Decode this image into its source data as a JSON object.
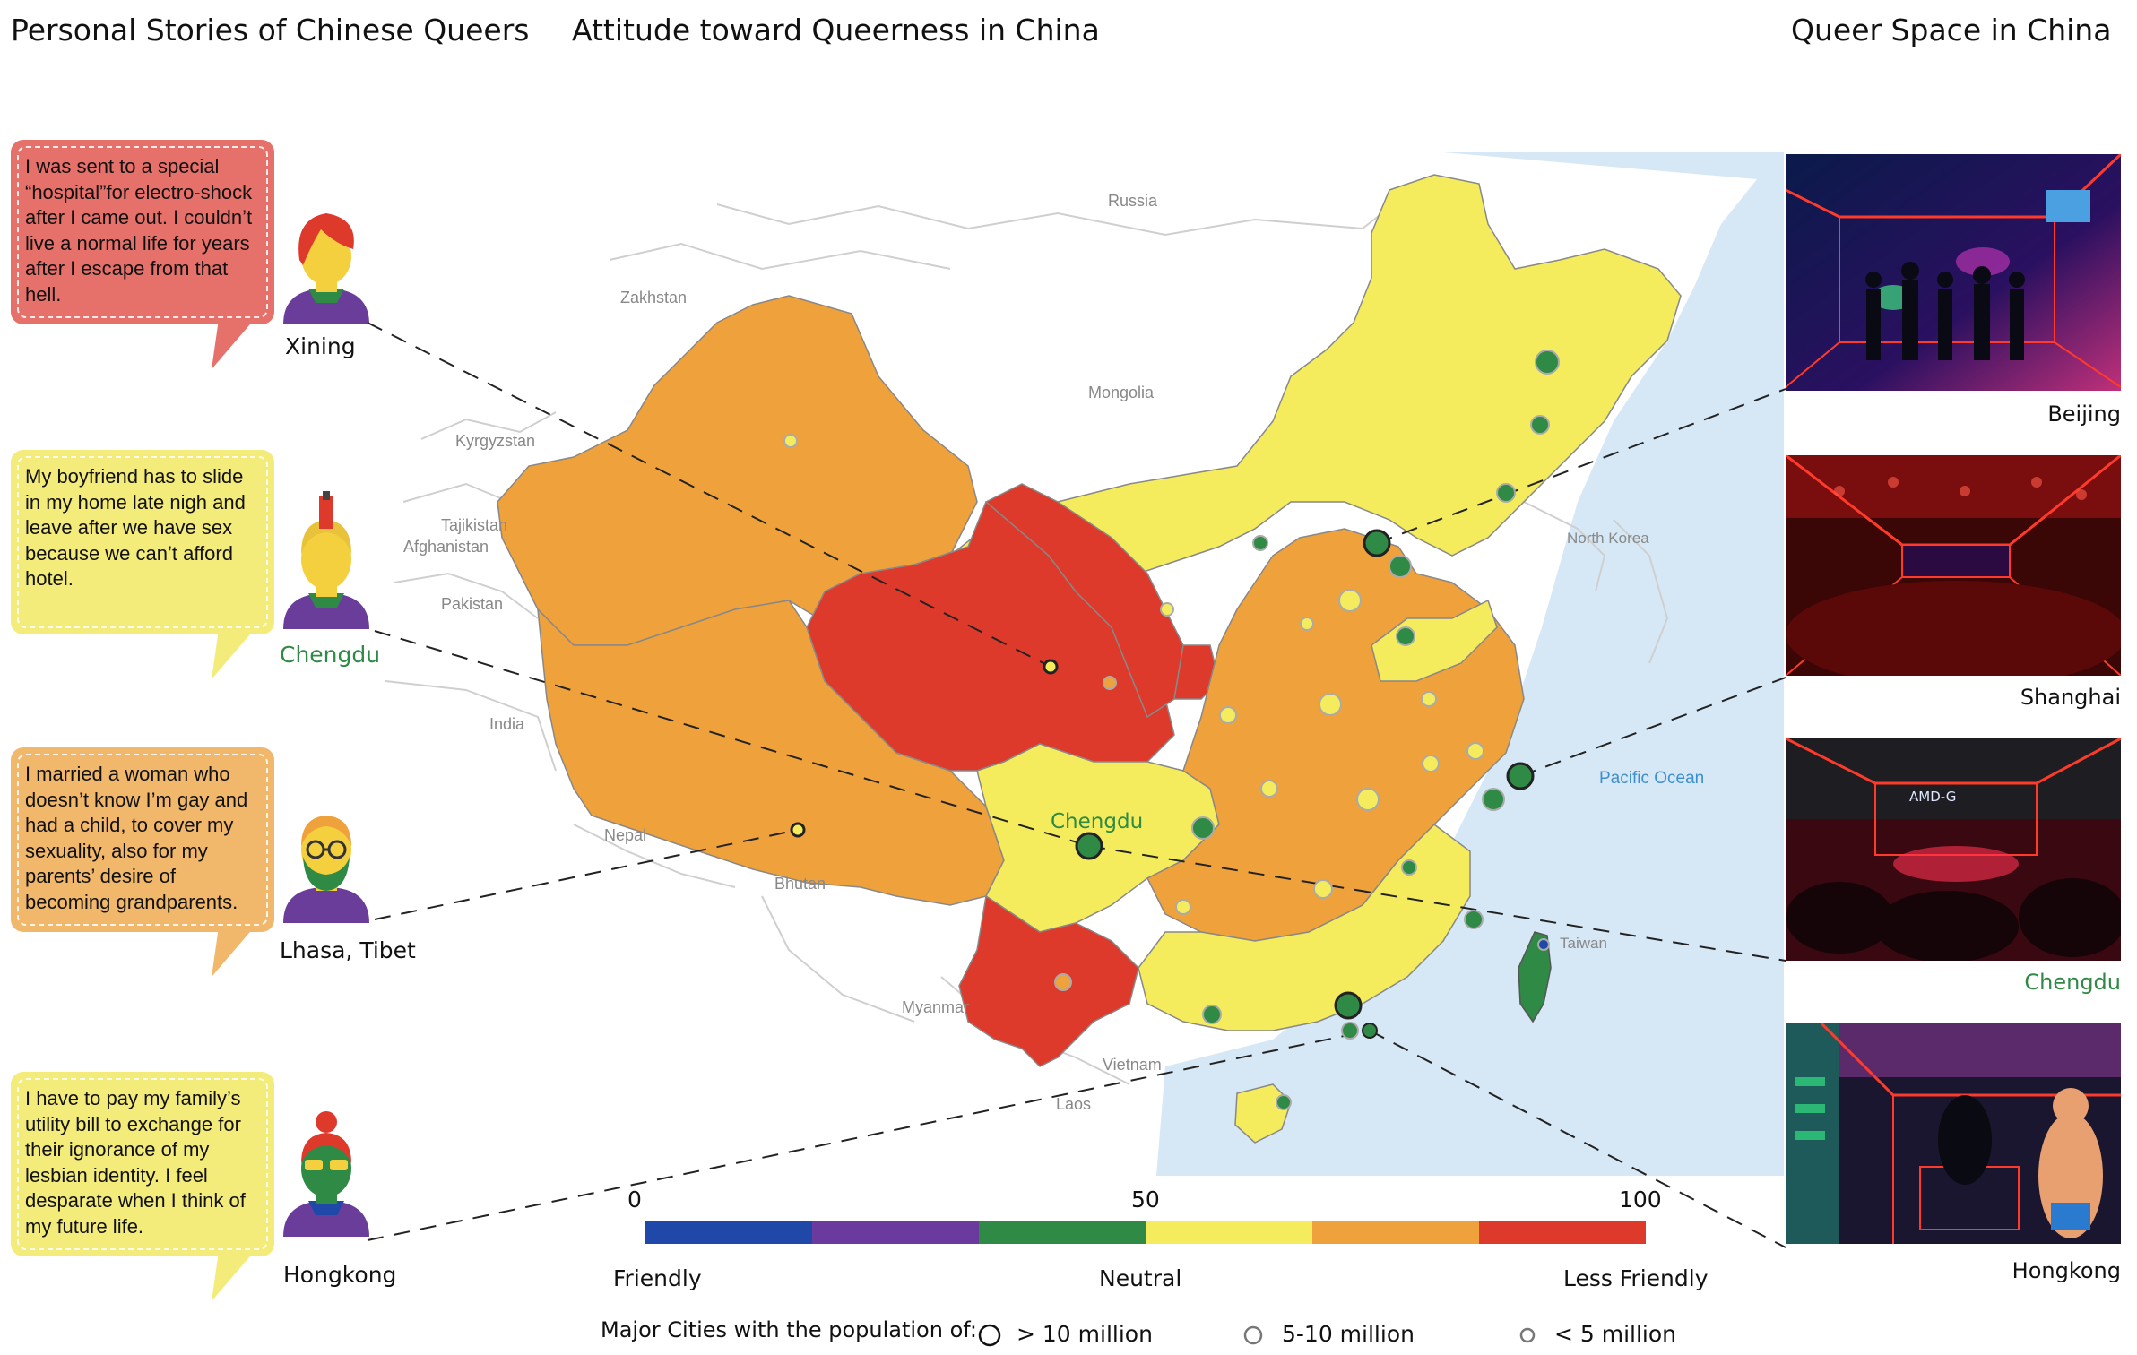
{
  "headings": {
    "stories": "Personal Stories of Chinese Queers",
    "attitude": "Attitude toward Queerness in China",
    "space": "Queer Space in China"
  },
  "stories": [
    {
      "text": "I was sent to a special “hospital”for electro-shock after I came out. I couldn’t  live a normal life for years after I escape from that hell.",
      "city": "Xining",
      "color": "#e6706a"
    },
    {
      "text": "My boyfriend has to slide in  my home late nigh and leave after we have sex because we can’t afford hotel.",
      "city": "Chengdu",
      "color": "#f4ec7a"
    },
    {
      "text": "I married a woman who doesn’t know  I’m gay and had a child, to cover my sexuality, also for my parents’ desire of becoming grandparents.",
      "city": "Lhasa, Tibet",
      "color": "#f1b86c"
    },
    {
      "text": "I have to pay my family’s utility bill to exchange for their ignorance of my lesbian identity. I feel desparate when I think of my future life.",
      "city": "Hongkong",
      "color": "#f4ec7a"
    }
  ],
  "map_labels": {
    "russia": "Russia",
    "zakhstan": "Zakhstan",
    "mongolia": "Mongolia",
    "kyrgyzstan": "Kyrgyzstan",
    "tajikistan": "Tajikistan",
    "afghanistan": "Afghanistan",
    "pakistan": "Pakistan",
    "india": "India",
    "nepal": "Nepal",
    "bhutan": "Bhutan",
    "myanmar": "Myanmar",
    "vietnam": "Vietnam",
    "laos": "Laos",
    "north_korea": "North Korea",
    "taiwan": "Taiwan",
    "pacific": "Pacific Ocean",
    "chengdu": "Chengdu"
  },
  "spaces": [
    {
      "city": "Beijing",
      "sign": ""
    },
    {
      "city": "Shanghai",
      "sign": ""
    },
    {
      "city": "Chengdu",
      "sign": "AMD-G"
    },
    {
      "city": "Hongkong",
      "sign": ""
    }
  ],
  "colorbar": {
    "min": "0",
    "mid": "50",
    "max": "100",
    "left": "Friendly",
    "center": "Neutral",
    "right": "Less Friendly",
    "colors": [
      "#1f48a8",
      "#6b3a9e",
      "#2f8a46",
      "#f4ec5c",
      "#efa23c",
      "#dd3a2c"
    ]
  },
  "population_legend": {
    "title": "Major Cities with the population of:",
    "large": "> 10 million",
    "medium": "5-10 million",
    "small": "< 5 million"
  },
  "colors": {
    "red": "#dd3a2c",
    "orange": "#efa23c",
    "yellow": "#f4ec5c",
    "green": "#2f8a46",
    "ocean": "#d6e8f6",
    "chengdu_label": "#2f8a46"
  }
}
